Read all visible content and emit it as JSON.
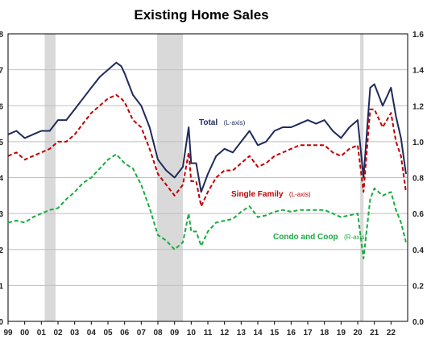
{
  "chart_data": {
    "type": "line",
    "title": "Existing Home Sales",
    "x_tick_labels": [
      "99",
      "00",
      "01",
      "02",
      "03",
      "04",
      "05",
      "06",
      "07",
      "08",
      "09",
      "10",
      "11",
      "12",
      "13",
      "14",
      "15",
      "16",
      "17",
      "18",
      "19",
      "20",
      "21",
      "22"
    ],
    "x_range": [
      1999.0,
      2023.0
    ],
    "y_left_range": [
      0,
      8
    ],
    "y_left_ticks": [
      "0",
      "1",
      "2",
      "3",
      "4",
      "5",
      "6",
      "7",
      "8"
    ],
    "y_right_range": [
      0.0,
      1.6
    ],
    "y_right_ticks": [
      "0.0",
      "0.2",
      "0.4",
      "0.6",
      "0.8",
      "1.0",
      "1.2",
      "1.4",
      "1.6"
    ],
    "grid": "horizontal",
    "recession_shading": [
      [
        2001.2,
        2001.85
      ],
      [
        2007.95,
        2009.5
      ],
      [
        2020.15,
        2020.35
      ]
    ],
    "annotations": [
      {
        "main": "Total",
        "sub": "(L-axis)",
        "color": "#1f2a5c"
      },
      {
        "main": "Single Family",
        "sub": "(L-axis)",
        "color": "#c00000"
      },
      {
        "main": "Condo and Coop",
        "sub": "(R-axis)",
        "color": "#1aab40"
      }
    ],
    "series": [
      {
        "name": "Total",
        "axis": "left",
        "style": "solid",
        "color": "#1f2a5c",
        "points": [
          [
            1999.0,
            5.2
          ],
          [
            1999.5,
            5.3
          ],
          [
            2000.0,
            5.1
          ],
          [
            2000.5,
            5.2
          ],
          [
            2001.0,
            5.3
          ],
          [
            2001.5,
            5.3
          ],
          [
            2002.0,
            5.6
          ],
          [
            2002.5,
            5.6
          ],
          [
            2003.0,
            5.9
          ],
          [
            2003.5,
            6.2
          ],
          [
            2004.0,
            6.5
          ],
          [
            2004.5,
            6.8
          ],
          [
            2005.0,
            7.0
          ],
          [
            2005.5,
            7.2
          ],
          [
            2005.8,
            7.1
          ],
          [
            2006.0,
            6.9
          ],
          [
            2006.5,
            6.3
          ],
          [
            2007.0,
            6.0
          ],
          [
            2007.5,
            5.4
          ],
          [
            2008.0,
            4.5
          ],
          [
            2008.5,
            4.2
          ],
          [
            2009.0,
            4.0
          ],
          [
            2009.5,
            4.3
          ],
          [
            2009.85,
            5.4
          ],
          [
            2010.0,
            4.4
          ],
          [
            2010.3,
            4.4
          ],
          [
            2010.6,
            3.6
          ],
          [
            2011.0,
            4.1
          ],
          [
            2011.5,
            4.6
          ],
          [
            2012.0,
            4.8
          ],
          [
            2012.5,
            4.7
          ],
          [
            2013.0,
            5.0
          ],
          [
            2013.5,
            5.3
          ],
          [
            2014.0,
            4.9
          ],
          [
            2014.5,
            5.0
          ],
          [
            2015.0,
            5.3
          ],
          [
            2015.5,
            5.4
          ],
          [
            2016.0,
            5.4
          ],
          [
            2016.5,
            5.5
          ],
          [
            2017.0,
            5.6
          ],
          [
            2017.5,
            5.5
          ],
          [
            2018.0,
            5.6
          ],
          [
            2018.5,
            5.3
          ],
          [
            2019.0,
            5.1
          ],
          [
            2019.5,
            5.4
          ],
          [
            2020.0,
            5.6
          ],
          [
            2020.35,
            4.0
          ],
          [
            2020.75,
            6.5
          ],
          [
            2021.0,
            6.6
          ],
          [
            2021.5,
            6.0
          ],
          [
            2022.0,
            6.5
          ],
          [
            2022.3,
            5.7
          ],
          [
            2022.6,
            5.1
          ],
          [
            2022.9,
            4.1
          ]
        ]
      },
      {
        "name": "Single Family",
        "axis": "left",
        "style": "dashed",
        "color": "#c00000",
        "points": [
          [
            1999.0,
            4.6
          ],
          [
            1999.5,
            4.7
          ],
          [
            2000.0,
            4.5
          ],
          [
            2000.5,
            4.6
          ],
          [
            2001.0,
            4.7
          ],
          [
            2001.5,
            4.8
          ],
          [
            2002.0,
            5.0
          ],
          [
            2002.5,
            5.0
          ],
          [
            2003.0,
            5.2
          ],
          [
            2003.5,
            5.5
          ],
          [
            2004.0,
            5.8
          ],
          [
            2004.5,
            6.0
          ],
          [
            2005.0,
            6.2
          ],
          [
            2005.5,
            6.3
          ],
          [
            2005.8,
            6.2
          ],
          [
            2006.0,
            6.1
          ],
          [
            2006.5,
            5.6
          ],
          [
            2007.0,
            5.4
          ],
          [
            2007.5,
            4.8
          ],
          [
            2008.0,
            4.1
          ],
          [
            2008.5,
            3.8
          ],
          [
            2009.0,
            3.5
          ],
          [
            2009.5,
            3.8
          ],
          [
            2009.85,
            4.7
          ],
          [
            2010.0,
            3.9
          ],
          [
            2010.3,
            3.9
          ],
          [
            2010.6,
            3.2
          ],
          [
            2011.0,
            3.6
          ],
          [
            2011.5,
            4.0
          ],
          [
            2012.0,
            4.2
          ],
          [
            2012.5,
            4.2
          ],
          [
            2013.0,
            4.4
          ],
          [
            2013.5,
            4.6
          ],
          [
            2014.0,
            4.3
          ],
          [
            2014.5,
            4.4
          ],
          [
            2015.0,
            4.6
          ],
          [
            2015.5,
            4.7
          ],
          [
            2016.0,
            4.8
          ],
          [
            2016.5,
            4.9
          ],
          [
            2017.0,
            4.9
          ],
          [
            2017.5,
            4.9
          ],
          [
            2018.0,
            4.9
          ],
          [
            2018.5,
            4.7
          ],
          [
            2019.0,
            4.6
          ],
          [
            2019.5,
            4.8
          ],
          [
            2020.0,
            4.9
          ],
          [
            2020.35,
            3.6
          ],
          [
            2020.75,
            5.9
          ],
          [
            2021.0,
            5.9
          ],
          [
            2021.5,
            5.4
          ],
          [
            2022.0,
            5.8
          ],
          [
            2022.3,
            5.0
          ],
          [
            2022.6,
            4.6
          ],
          [
            2022.9,
            3.6
          ]
        ]
      },
      {
        "name": "Condo and Coop",
        "axis": "right",
        "style": "dashed",
        "color": "#1aab40",
        "points": [
          [
            1999.0,
            0.55
          ],
          [
            1999.5,
            0.56
          ],
          [
            2000.0,
            0.55
          ],
          [
            2000.5,
            0.58
          ],
          [
            2001.0,
            0.6
          ],
          [
            2001.5,
            0.62
          ],
          [
            2002.0,
            0.63
          ],
          [
            2002.5,
            0.68
          ],
          [
            2003.0,
            0.72
          ],
          [
            2003.5,
            0.77
          ],
          [
            2004.0,
            0.8
          ],
          [
            2004.5,
            0.85
          ],
          [
            2005.0,
            0.9
          ],
          [
            2005.5,
            0.93
          ],
          [
            2006.0,
            0.88
          ],
          [
            2006.5,
            0.85
          ],
          [
            2007.0,
            0.76
          ],
          [
            2007.5,
            0.63
          ],
          [
            2008.0,
            0.48
          ],
          [
            2008.5,
            0.45
          ],
          [
            2009.0,
            0.4
          ],
          [
            2009.5,
            0.44
          ],
          [
            2009.85,
            0.6
          ],
          [
            2010.0,
            0.5
          ],
          [
            2010.3,
            0.5
          ],
          [
            2010.6,
            0.42
          ],
          [
            2011.0,
            0.5
          ],
          [
            2011.5,
            0.55
          ],
          [
            2012.0,
            0.56
          ],
          [
            2012.5,
            0.57
          ],
          [
            2013.0,
            0.61
          ],
          [
            2013.5,
            0.64
          ],
          [
            2014.0,
            0.58
          ],
          [
            2014.5,
            0.59
          ],
          [
            2015.0,
            0.61
          ],
          [
            2015.5,
            0.62
          ],
          [
            2016.0,
            0.61
          ],
          [
            2016.5,
            0.62
          ],
          [
            2017.0,
            0.62
          ],
          [
            2017.5,
            0.62
          ],
          [
            2018.0,
            0.62
          ],
          [
            2018.5,
            0.6
          ],
          [
            2019.0,
            0.58
          ],
          [
            2019.5,
            0.59
          ],
          [
            2020.0,
            0.6
          ],
          [
            2020.35,
            0.35
          ],
          [
            2020.75,
            0.68
          ],
          [
            2021.0,
            0.74
          ],
          [
            2021.5,
            0.7
          ],
          [
            2022.0,
            0.72
          ],
          [
            2022.3,
            0.62
          ],
          [
            2022.6,
            0.55
          ],
          [
            2022.9,
            0.44
          ]
        ]
      }
    ]
  }
}
